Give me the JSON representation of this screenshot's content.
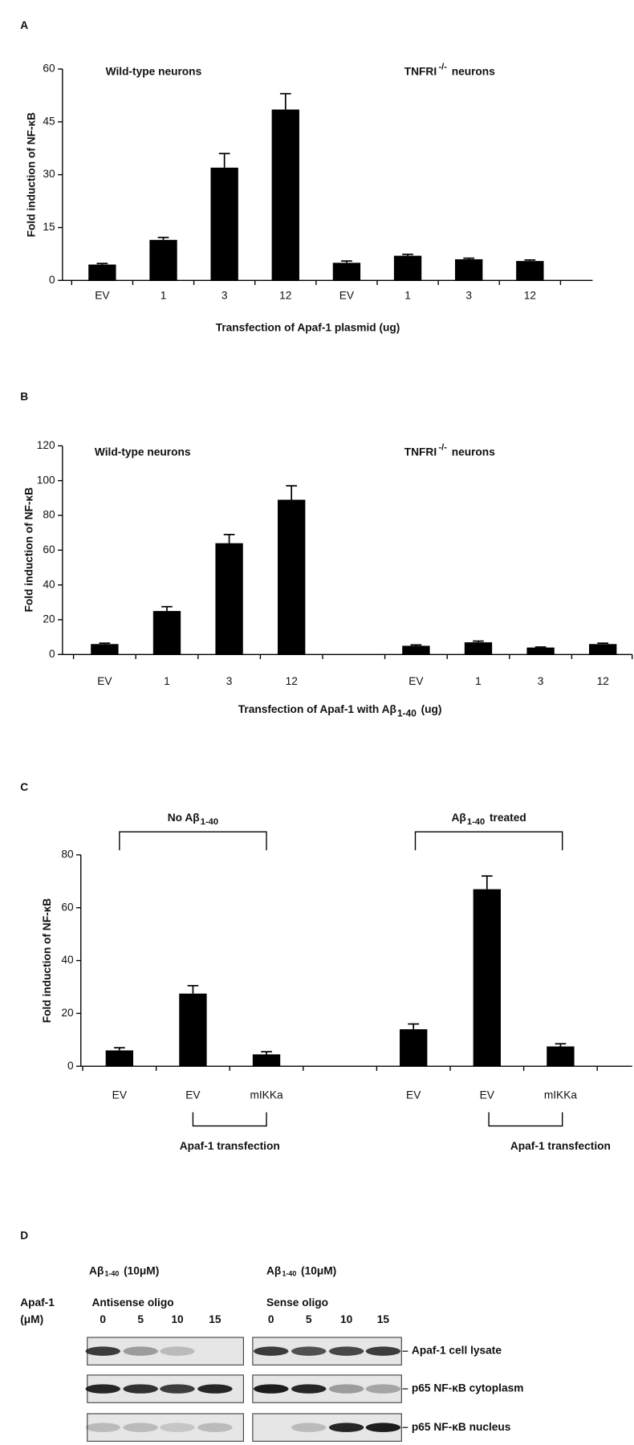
{
  "chart_data": [
    {
      "type": "bar",
      "panel": "A",
      "y_label": "Fold induction of NF-κB",
      "x_label": "Transfection of Apaf-1 plasmid (ug)",
      "annotations": [
        {
          "text": "Wild-type neurons"
        },
        {
          "text": "TNFRI",
          "sup": "-/-",
          "after": "neurons"
        }
      ],
      "categories": [
        "EV",
        "1",
        "3",
        "12",
        "EV",
        "1",
        "3",
        "12"
      ],
      "values": [
        4.5,
        11.5,
        32,
        48.5,
        5,
        7,
        6,
        5.5
      ],
      "errors": [
        0.3,
        0.7,
        4,
        4.5,
        0.5,
        0.4,
        0.3,
        0.3
      ],
      "color": "#000000",
      "ylim": [
        0,
        60
      ],
      "yticks": [
        0,
        15,
        30,
        45,
        60
      ]
    },
    {
      "type": "bar",
      "panel": "B",
      "y_label": "Fold induction of NF-κB",
      "x_label": {
        "text": "Transfection of Apaf-1 with Aβ",
        "sub": "1-40",
        "after": "(ug)"
      },
      "annotations": [
        {
          "text": "Wild-type neurons"
        },
        {
          "text": "TNFRI",
          "sup": "-/-",
          "after": "neurons"
        }
      ],
      "categories": [
        "EV",
        "1",
        "3",
        "12",
        null,
        "EV",
        "1",
        "3",
        "12"
      ],
      "values": [
        6,
        25,
        64,
        89,
        null,
        5,
        7,
        4,
        6
      ],
      "errors": [
        0.5,
        2.5,
        5,
        8,
        null,
        0.5,
        0.7,
        0.3,
        0.5
      ],
      "color": "#000000",
      "ylim": [
        0,
        120
      ],
      "yticks": [
        0,
        20,
        40,
        60,
        80,
        100,
        120
      ]
    },
    {
      "type": "bar",
      "panel": "C",
      "y_label": "Fold induction of NF-κB",
      "annotations": [
        {
          "text": "No Aβ",
          "sub": "1-40"
        },
        {
          "text": "Aβ",
          "sub": "1-40",
          "after": "treated"
        },
        {
          "text": "Apaf-1 transfection"
        },
        {
          "text": "Apaf-1 transfection"
        }
      ],
      "categories": [
        "EV",
        "EV",
        "mIKKa",
        null,
        "EV",
        "EV",
        "mIKKa"
      ],
      "values": [
        6,
        27.5,
        4.5,
        null,
        14,
        67,
        7.5
      ],
      "errors": [
        1,
        3,
        1,
        null,
        2,
        5,
        1
      ],
      "color": "#000000",
      "ylim": [
        0,
        80
      ],
      "yticks": [
        0,
        20,
        40,
        60,
        80
      ]
    }
  ],
  "blot": {
    "panel": "D",
    "treatment": [
      {
        "text": "Aβ",
        "sub": "1-40",
        "after": "(10μM)"
      },
      {
        "text": "Aβ",
        "sub": "1-40",
        "after": "(10μM)"
      }
    ],
    "dose_label": [
      "Apaf-1",
      "(μM)"
    ],
    "groups": [
      "Antisense oligo",
      "Sense oligo"
    ],
    "lanes": [
      [
        "0",
        "5",
        "10",
        "15"
      ],
      [
        "0",
        "5",
        "10",
        "15"
      ]
    ],
    "rows": [
      "Apaf-1 cell lysate",
      "p65 NF-κB cytoplasm",
      "p65 NF-κB nucleus"
    ]
  }
}
